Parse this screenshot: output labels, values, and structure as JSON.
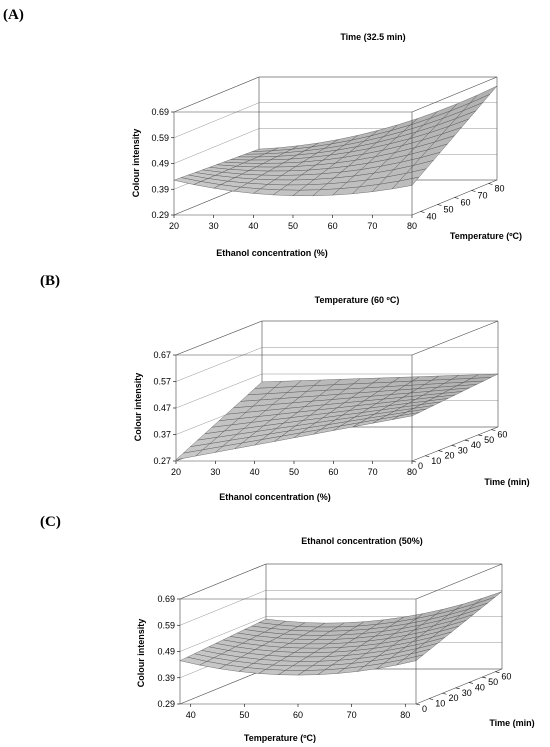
{
  "chart_data": [
    {
      "type": "surface",
      "panel": "(A)",
      "title": "Time (32.5 min)",
      "zlabel": "Colour intensity",
      "xlabel": "Ethanol concentration (%)",
      "ylabel": "Temperature (ºC)",
      "x_ticks": [
        "20",
        "30",
        "40",
        "50",
        "60",
        "70",
        "80"
      ],
      "y_ticks": [
        "40",
        "50",
        "60",
        "70",
        "80"
      ],
      "z_ticks": [
        "0.29",
        "0.39",
        "0.49",
        "0.59",
        "0.69"
      ],
      "xlim": [
        20,
        80
      ],
      "ylim": [
        35,
        85
      ],
      "zlim": [
        0.29,
        0.69
      ],
      "corners": {
        "x_min_y_min": 0.425,
        "x_max_y_min": 0.405,
        "x_min_y_max": 0.41,
        "x_max_y_max": 0.655
      },
      "curvature": {
        "bx": 0.05,
        "by": 0.0,
        "dir": "up"
      }
    },
    {
      "type": "surface",
      "panel": "(B)",
      "title": "Temperature (60 ºC)",
      "zlabel": "Colour intensity",
      "xlabel": "Ethanol concentration (%)",
      "ylabel": "Time (min)",
      "x_ticks": [
        "20",
        "30",
        "40",
        "50",
        "60",
        "70",
        "80"
      ],
      "y_ticks": [
        "0",
        "10",
        "20",
        "30",
        "40",
        "50",
        "60"
      ],
      "z_ticks": [
        "0.27",
        "0.37",
        "0.47",
        "0.57",
        "0.67"
      ],
      "xlim": [
        20,
        80
      ],
      "ylim": [
        0,
        65
      ],
      "zlim": [
        0.27,
        0.67
      ],
      "corners": {
        "x_min_y_min": 0.275,
        "x_max_y_min": 0.44,
        "x_min_y_max": 0.44,
        "x_max_y_max": 0.47
      },
      "curvature": {
        "bx": 0.0,
        "by": 0.0,
        "dir": "up"
      }
    },
    {
      "type": "surface",
      "panel": "(C)",
      "title": "Ethanol concentration (50%)",
      "zlabel": "Colour intensity",
      "xlabel": "Temperature (ºC)",
      "ylabel": "Time (min)",
      "x_ticks": [
        "40",
        "50",
        "60",
        "70",
        "80"
      ],
      "y_ticks": [
        "0",
        "10",
        "20",
        "30",
        "40",
        "50",
        "60"
      ],
      "z_ticks": [
        "0.29",
        "0.39",
        "0.49",
        "0.59",
        "0.69"
      ],
      "xlim": [
        38,
        82
      ],
      "ylim": [
        0,
        65
      ],
      "zlim": [
        0.29,
        0.69
      ],
      "corners": {
        "x_min_y_min": 0.455,
        "x_max_y_min": 0.455,
        "x_min_y_max": 0.48,
        "x_max_y_max": 0.585
      },
      "curvature": {
        "bx": 0.055,
        "by": 0.0,
        "dir": "up"
      }
    }
  ]
}
